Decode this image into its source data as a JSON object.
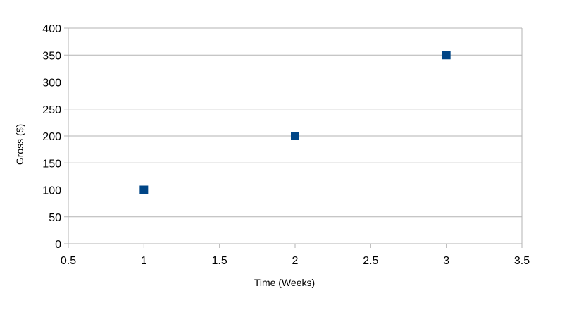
{
  "chart_data": {
    "type": "scatter",
    "title": "",
    "xlabel": "Time (Weeks)",
    "ylabel": "Gross ($)",
    "xlim": [
      0.5,
      3.5
    ],
    "ylim": [
      0,
      400
    ],
    "x_ticks": [
      "0.5",
      "1",
      "1.5",
      "2",
      "2.5",
      "3",
      "3.5"
    ],
    "y_ticks": [
      "0",
      "50",
      "100",
      "150",
      "200",
      "250",
      "300",
      "350",
      "400"
    ],
    "grid": "horizontal",
    "legend": "none",
    "series": [
      {
        "marker": "square",
        "color": "#004586",
        "points": [
          {
            "x": 1,
            "y": 100
          },
          {
            "x": 2,
            "y": 200
          },
          {
            "x": 3,
            "y": 350
          }
        ]
      }
    ]
  }
}
